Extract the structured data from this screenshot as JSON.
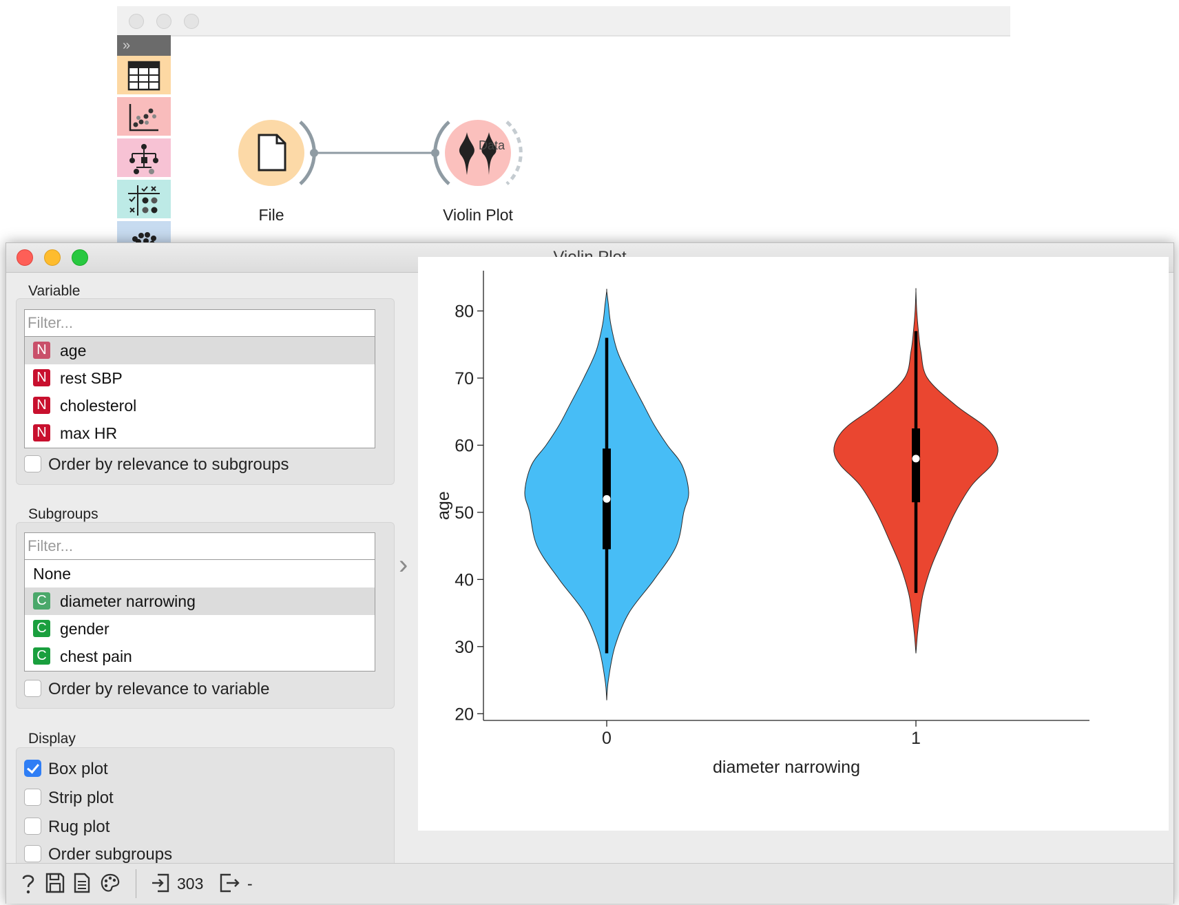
{
  "canvas": {
    "nodes": [
      {
        "id": "file",
        "label": "File",
        "icon": "file-document-icon",
        "color": "#fcd9a7"
      },
      {
        "id": "violin",
        "label": "Violin Plot",
        "icon": "violin-icon",
        "color": "#fbc0bd"
      }
    ],
    "link_label": "Data",
    "toolbox_categories": [
      {
        "name": "data",
        "icon": "table-icon",
        "color": "#fdd8a3"
      },
      {
        "name": "visualize",
        "icon": "scatter-icon",
        "color": "#f9bcbc"
      },
      {
        "name": "model",
        "icon": "tree-icon",
        "color": "#f7c2d4"
      },
      {
        "name": "evaluate",
        "icon": "confusion-matrix-icon",
        "color": "#bdeae6"
      },
      {
        "name": "unsupervised",
        "icon": "cluster-icon",
        "color": "#c7dbf0"
      }
    ]
  },
  "widget": {
    "title": "Violin Plot",
    "variable": {
      "section_title": "Variable",
      "filter_placeholder": "Filter...",
      "items": [
        {
          "badge": "N",
          "label": "age",
          "selected": true
        },
        {
          "badge": "N",
          "label": "rest SBP",
          "selected": false
        },
        {
          "badge": "N",
          "label": "cholesterol",
          "selected": false
        },
        {
          "badge": "N",
          "label": "max HR",
          "selected": false
        }
      ],
      "order_checkbox": {
        "label": "Order by relevance to subgroups",
        "checked": false
      }
    },
    "subgroups": {
      "section_title": "Subgroups",
      "filter_placeholder": "Filter...",
      "none_label": "None",
      "items": [
        {
          "badge": "C",
          "label": "diameter narrowing",
          "selected": true
        },
        {
          "badge": "C",
          "label": "gender",
          "selected": false
        },
        {
          "badge": "C",
          "label": "chest pain",
          "selected": false
        }
      ],
      "order_checkbox": {
        "label": "Order by relevance to variable",
        "checked": false
      }
    },
    "display": {
      "section_title": "Display",
      "options": [
        {
          "label": "Box plot",
          "checked": true
        },
        {
          "label": "Strip plot",
          "checked": false
        },
        {
          "label": "Rug plot",
          "checked": false
        },
        {
          "label": "Order subgroups",
          "checked": false
        }
      ]
    },
    "status_bar": {
      "icons": [
        "help-icon",
        "save-icon",
        "report-icon",
        "palette-icon"
      ],
      "input_count": "303",
      "output_count": "-"
    }
  },
  "chart_data": {
    "type": "violin",
    "xlabel": "diameter narrowing",
    "ylabel": "age",
    "ylim": [
      19,
      86
    ],
    "yticks": [
      20,
      30,
      40,
      50,
      60,
      70,
      80
    ],
    "categories": [
      "0",
      "1"
    ],
    "series": [
      {
        "name": "0",
        "color": "#47bdf6",
        "density": [
          [
            22,
            0.0
          ],
          [
            25,
            0.02
          ],
          [
            30,
            0.1
          ],
          [
            35,
            0.27
          ],
          [
            40,
            0.58
          ],
          [
            45,
            0.85
          ],
          [
            50,
            0.94
          ],
          [
            53,
            1.0
          ],
          [
            57,
            0.92
          ],
          [
            60,
            0.74
          ],
          [
            63,
            0.58
          ],
          [
            66,
            0.45
          ],
          [
            70,
            0.28
          ],
          [
            74,
            0.13
          ],
          [
            78,
            0.05
          ],
          [
            81,
            0.02
          ],
          [
            83,
            0.0
          ]
        ],
        "box": {
          "whisker_low": 29,
          "q1": 44.5,
          "median": 52,
          "q3": 59.5,
          "whisker_high": 76
        }
      },
      {
        "name": "1",
        "color": "#ea4630",
        "density": [
          [
            29,
            0.0
          ],
          [
            32,
            0.02
          ],
          [
            35,
            0.05
          ],
          [
            38,
            0.09
          ],
          [
            42,
            0.19
          ],
          [
            46,
            0.33
          ],
          [
            50,
            0.48
          ],
          [
            54,
            0.68
          ],
          [
            57,
            0.92
          ],
          [
            59,
            1.0
          ],
          [
            61,
            0.96
          ],
          [
            63,
            0.82
          ],
          [
            66,
            0.48
          ],
          [
            70,
            0.14
          ],
          [
            74,
            0.06
          ],
          [
            77,
            0.03
          ],
          [
            80,
            0.01
          ],
          [
            83,
            0.0
          ]
        ],
        "box": {
          "whisker_low": 38,
          "q1": 51.5,
          "median": 58,
          "q3": 62.5,
          "whisker_high": 77
        }
      }
    ]
  }
}
